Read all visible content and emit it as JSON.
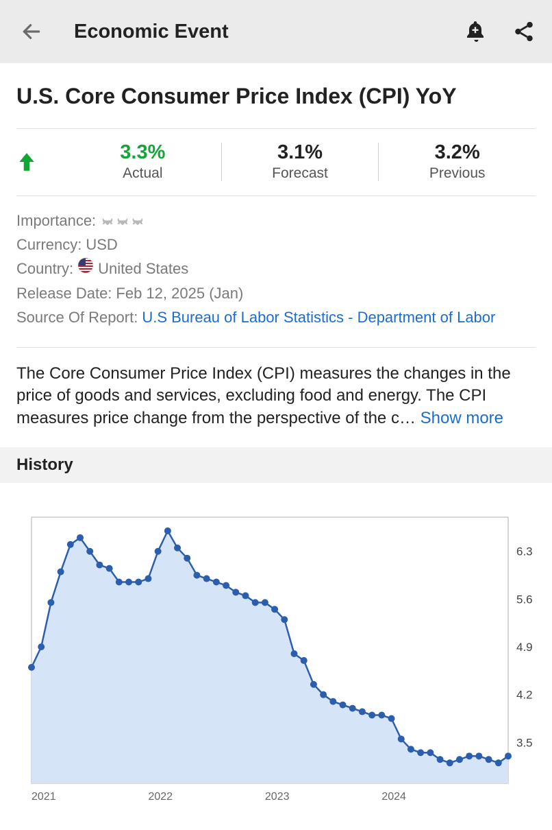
{
  "header": {
    "title": "Economic Event"
  },
  "page": {
    "title": "U.S. Core Consumer Price Index (CPI) YoY"
  },
  "stats": {
    "direction": "up",
    "arrow_color": "#11a636",
    "actual": {
      "value": "3.3%",
      "label": "Actual",
      "color": "#11a636"
    },
    "forecast": {
      "value": "3.1%",
      "label": "Forecast",
      "color": "#222222"
    },
    "previous": {
      "value": "3.2%",
      "label": "Previous",
      "color": "#222222"
    }
  },
  "meta": {
    "importance_label": "Importance:",
    "importance_level": 3,
    "currency_label": "Currency:",
    "currency_value": "USD",
    "country_label": "Country:",
    "country_value": "United States",
    "release_label": "Release Date:",
    "release_value": "Feb 12, 2025 (Jan)",
    "source_label": "Source Of Report:",
    "source_value": "U.S Bureau of Labor Statistics - Department of Labor"
  },
  "description": {
    "text": "The Core Consumer Price Index (CPI) measures the changes in the price of goods and services, excluding food and energy. The CPI measures price change from the perspective of the c…",
    "show_more_label": "Show more"
  },
  "history": {
    "section_title": "History",
    "chart": {
      "type": "area-line-markers",
      "line_color": "#2b5fad",
      "fill_color": "#d6e4f7",
      "marker_color": "#2b5fad",
      "marker_radius": 5,
      "line_width": 2.5,
      "background_color": "#ffffff",
      "border_color": "#b0b0b0",
      "ylim": [
        2.9,
        6.8
      ],
      "yticks": [
        3.5,
        4.2,
        4.9,
        5.6,
        6.3
      ],
      "x_labels": [
        {
          "label": "2021",
          "x": 0
        },
        {
          "label": "2022",
          "x": 12
        },
        {
          "label": "2023",
          "x": 24
        },
        {
          "label": "2024",
          "x": 36
        }
      ],
      "x_range": [
        0,
        49
      ],
      "values": [
        4.6,
        4.9,
        5.55,
        6.0,
        6.4,
        6.5,
        6.3,
        6.1,
        6.05,
        5.85,
        5.85,
        5.85,
        5.9,
        6.3,
        6.6,
        6.35,
        6.2,
        5.95,
        5.9,
        5.85,
        5.8,
        5.7,
        5.65,
        5.55,
        5.55,
        5.45,
        5.3,
        4.8,
        4.7,
        4.35,
        4.2,
        4.1,
        4.05,
        4.0,
        3.95,
        3.9,
        3.9,
        3.85,
        3.55,
        3.4,
        3.35,
        3.35,
        3.25,
        3.2,
        3.25,
        3.3,
        3.3,
        3.25,
        3.2,
        3.3
      ]
    }
  }
}
